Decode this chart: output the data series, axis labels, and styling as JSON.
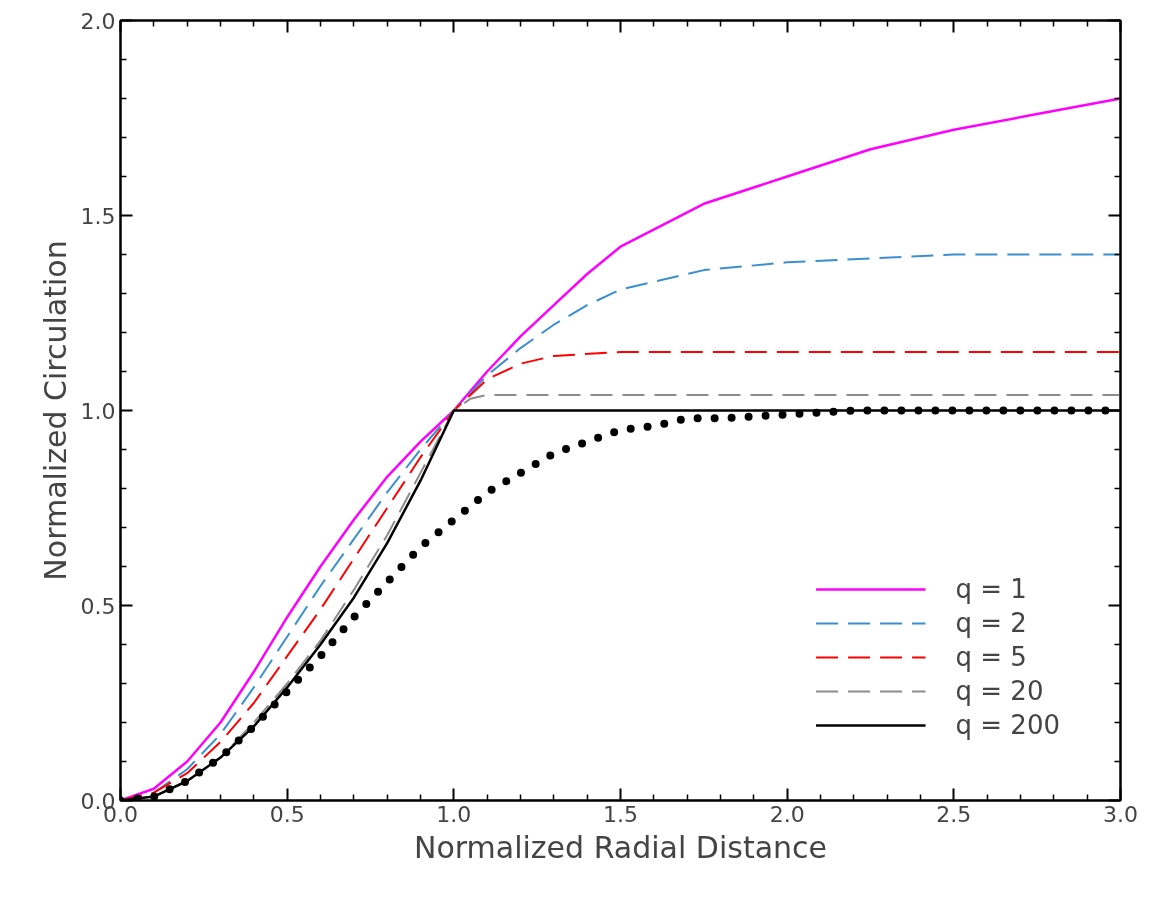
{
  "chart_data": {
    "type": "line",
    "xlabel": "Normalized Radial Distance",
    "ylabel": "Normalized Circulation",
    "xlim": [
      0,
      3
    ],
    "ylim": [
      0,
      2
    ],
    "xticks": [
      {
        "value": 0,
        "label": "0.0"
      },
      {
        "value": 0.5,
        "label": "0.5"
      },
      {
        "value": 1,
        "label": "1.0"
      },
      {
        "value": 1.5,
        "label": "1.5"
      },
      {
        "value": 2,
        "label": "2.0"
      },
      {
        "value": 2.5,
        "label": "2.5"
      },
      {
        "value": 3,
        "label": "3.0"
      }
    ],
    "yticks": [
      {
        "value": 0,
        "label": "0.0"
      },
      {
        "value": 0.5,
        "label": "0.5"
      },
      {
        "value": 1,
        "label": "1.0"
      },
      {
        "value": 1.5,
        "label": "1.5"
      },
      {
        "value": 2,
        "label": "2.0"
      }
    ],
    "grid": false,
    "legend": "bottom right",
    "marker": "none",
    "series": [
      {
        "name": "q = 1",
        "color": "#ff00ff",
        "line_style": "solid",
        "x": [
          0,
          0.1,
          0.2,
          0.3,
          0.4,
          0.5,
          0.6,
          0.7,
          0.8,
          0.9,
          1,
          1.1,
          1.2,
          1.3,
          1.4,
          1.5,
          1.75,
          2,
          2.25,
          2.5,
          2.75,
          3
        ],
        "values": [
          0,
          0.03,
          0.1,
          0.2,
          0.33,
          0.47,
          0.6,
          0.72,
          0.83,
          0.92,
          1.0,
          1.1,
          1.19,
          1.27,
          1.35,
          1.42,
          1.53,
          1.6,
          1.67,
          1.72,
          1.76,
          1.8
        ]
      },
      {
        "name": "q = 2",
        "color": "#3a8fd0",
        "line_style": "dashed",
        "x": [
          0,
          0.1,
          0.2,
          0.3,
          0.4,
          0.5,
          0.6,
          0.7,
          0.8,
          0.9,
          1,
          1.1,
          1.2,
          1.3,
          1.4,
          1.5,
          1.75,
          2,
          2.5,
          3
        ],
        "values": [
          0,
          0.02,
          0.08,
          0.17,
          0.29,
          0.42,
          0.55,
          0.67,
          0.79,
          0.9,
          1.0,
          1.09,
          1.16,
          1.22,
          1.27,
          1.31,
          1.36,
          1.38,
          1.4,
          1.4
        ]
      },
      {
        "name": "q = 5",
        "color": "#ff0000",
        "line_style": "dashed",
        "x": [
          0,
          0.1,
          0.2,
          0.3,
          0.4,
          0.5,
          0.6,
          0.7,
          0.8,
          0.9,
          1,
          1.1,
          1.2,
          1.3,
          1.5,
          3
        ],
        "values": [
          0,
          0.02,
          0.07,
          0.15,
          0.25,
          0.37,
          0.49,
          0.62,
          0.75,
          0.88,
          1.0,
          1.08,
          1.12,
          1.14,
          1.15,
          1.15
        ]
      },
      {
        "name": "q = 20",
        "color": "#8c8c8c",
        "line_style": "dashed",
        "x": [
          0,
          0.1,
          0.2,
          0.3,
          0.4,
          0.5,
          0.6,
          0.7,
          0.8,
          0.9,
          1,
          1.05,
          1.1,
          3
        ],
        "values": [
          0,
          0.01,
          0.05,
          0.11,
          0.2,
          0.3,
          0.41,
          0.54,
          0.68,
          0.84,
          1.0,
          1.03,
          1.04,
          1.04
        ]
      },
      {
        "name": "q = 200",
        "color": "#000000",
        "line_style": "solid",
        "x": [
          0,
          0.1,
          0.2,
          0.3,
          0.4,
          0.5,
          0.6,
          0.7,
          0.8,
          0.9,
          1,
          3
        ],
        "values": [
          0,
          0.01,
          0.05,
          0.11,
          0.19,
          0.29,
          0.4,
          0.52,
          0.66,
          0.82,
          1.0,
          1.0
        ]
      },
      {
        "color": "#000000",
        "line_style": "dotted",
        "x": [
          0,
          0.1,
          0.2,
          0.3,
          0.4,
          0.5,
          0.6,
          0.7,
          0.8,
          0.9,
          1,
          1.1,
          1.2,
          1.3,
          1.4,
          1.5,
          1.6,
          1.7,
          1.8,
          2,
          2.2,
          3
        ],
        "values": [
          0,
          0.01,
          0.05,
          0.11,
          0.19,
          0.28,
          0.37,
          0.47,
          0.56,
          0.65,
          0.72,
          0.79,
          0.84,
          0.89,
          0.92,
          0.95,
          0.96,
          0.98,
          0.98,
          0.99,
          1.0,
          1.0
        ]
      }
    ]
  }
}
